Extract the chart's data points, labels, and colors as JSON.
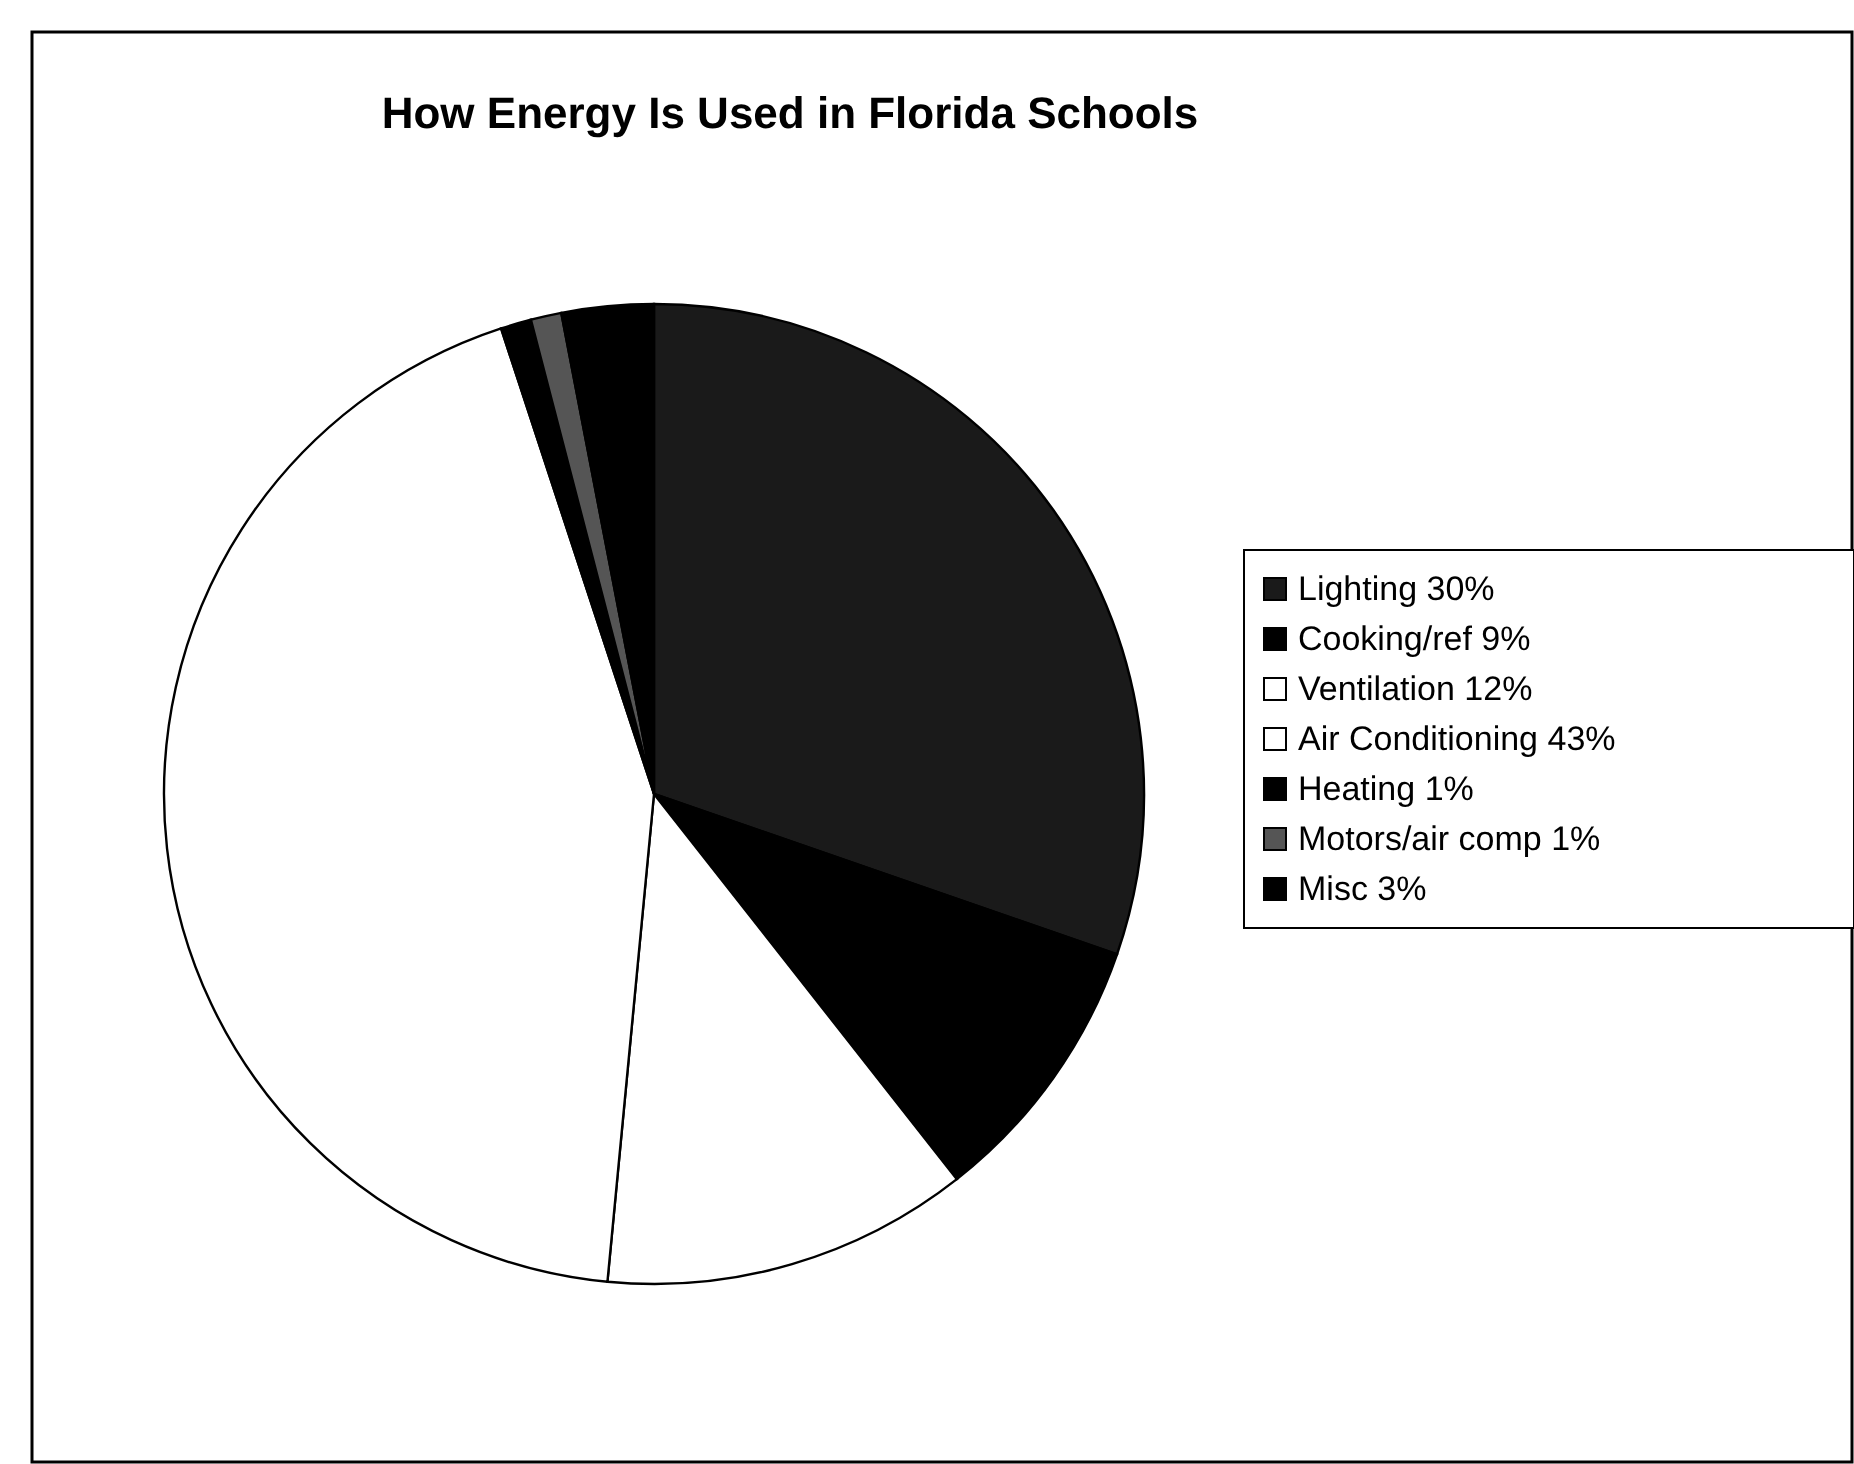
{
  "chart_data": {
    "type": "pie",
    "title": "How Energy Is Used in Florida Schools",
    "categories": [
      "Lighting 30%",
      "Cooking/ref 9%",
      "Ventilation 12%",
      "Air Conditioning 43%",
      "Heating 1%",
      "Motors/air comp 1%",
      "Misc 3%"
    ],
    "values": [
      30,
      9,
      12,
      43,
      1,
      1,
      3
    ],
    "colors": [
      "#1a1a1a",
      "#000000",
      "#ffffff",
      "#ffffff",
      "#000000",
      "#555555",
      "#000000"
    ],
    "legend": "right"
  }
}
